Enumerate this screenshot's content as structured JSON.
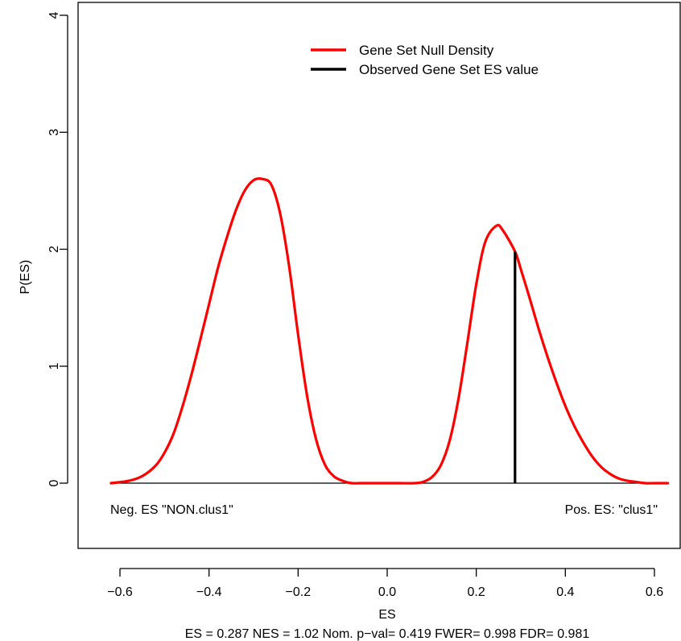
{
  "chart_data": {
    "type": "line",
    "title": "",
    "xlabel": "ES",
    "ylabel": "P(ES)",
    "subtitle": "ES = 0.287  NES = 1.02 Nom. p−val= 0.419 FWER= 0.998 FDR= 0.981",
    "xlim": [
      -0.65,
      0.65
    ],
    "ylim": [
      -0.5,
      4.05
    ],
    "x_ticks": [
      -0.6,
      -0.4,
      -0.2,
      0.0,
      0.2,
      0.4,
      0.6
    ],
    "x_tick_labels": [
      "−0.6",
      "−0.4",
      "−0.2",
      "0.0",
      "0.2",
      "0.4",
      "0.6"
    ],
    "y_ticks": [
      0,
      1,
      2,
      3,
      4
    ],
    "y_tick_labels": [
      "0",
      "1",
      "2",
      "3",
      "4"
    ],
    "grid": false,
    "legend_position": "top-right",
    "colors": {
      "density": "#ff0000",
      "observed": "#000000"
    },
    "series": [
      {
        "name": "Gene Set Null Density",
        "x": [
          -0.62,
          -0.58,
          -0.55,
          -0.52,
          -0.5,
          -0.48,
          -0.46,
          -0.44,
          -0.42,
          -0.4,
          -0.38,
          -0.36,
          -0.34,
          -0.32,
          -0.3,
          -0.28,
          -0.26,
          -0.24,
          -0.22,
          -0.2,
          -0.18,
          -0.16,
          -0.14,
          -0.12,
          -0.1,
          -0.08,
          -0.06,
          -0.03,
          0.0,
          0.03,
          0.06,
          0.08,
          0.1,
          0.12,
          0.14,
          0.16,
          0.18,
          0.2,
          0.22,
          0.245,
          0.26,
          0.287,
          0.3,
          0.32,
          0.34,
          0.36,
          0.38,
          0.4,
          0.42,
          0.44,
          0.46,
          0.48,
          0.5,
          0.52,
          0.54,
          0.56,
          0.58,
          0.6,
          0.63
        ],
        "y": [
          0.0,
          0.02,
          0.06,
          0.15,
          0.26,
          0.42,
          0.65,
          0.92,
          1.22,
          1.53,
          1.84,
          2.1,
          2.33,
          2.5,
          2.59,
          2.6,
          2.55,
          2.3,
          1.85,
          1.27,
          0.75,
          0.38,
          0.16,
          0.06,
          0.02,
          0.0,
          0.0,
          0.0,
          0.0,
          0.0,
          0.0,
          0.01,
          0.05,
          0.15,
          0.36,
          0.72,
          1.2,
          1.7,
          2.06,
          2.2,
          2.16,
          1.98,
          1.83,
          1.58,
          1.32,
          1.08,
          0.86,
          0.66,
          0.49,
          0.35,
          0.23,
          0.14,
          0.08,
          0.04,
          0.02,
          0.01,
          0.0,
          0.0,
          0.0
        ]
      }
    ],
    "observed": {
      "name": "Observed Gene Set ES value",
      "x": 0.287,
      "y": 1.98
    },
    "baseline": 0,
    "annotations": {
      "left": "Neg. ES \"NON.clus1\"",
      "right": "Pos. ES: \"clus1\""
    }
  }
}
